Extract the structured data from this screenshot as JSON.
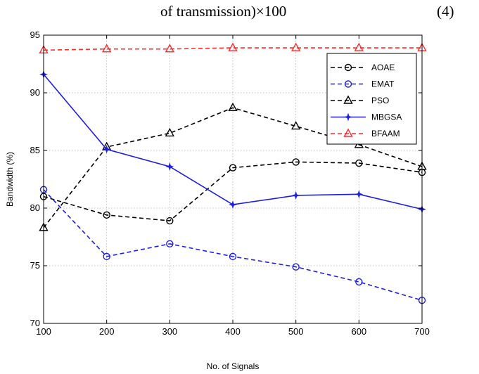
{
  "header": {
    "equation_text": "of transmission)×100",
    "equation_number": "(4)"
  },
  "colors": {
    "grid": "#b0b0b0",
    "black_series": "#000000",
    "blue_series": "#1f1fe0",
    "red_series": "#ff2a2a"
  },
  "chart_data": {
    "type": "line",
    "xlabel": "No. of Signals",
    "ylabel": "Bandwidth (%)",
    "xlim": [
      100,
      700
    ],
    "ylim": [
      70,
      95
    ],
    "xticks": [
      100,
      200,
      300,
      400,
      500,
      600,
      700
    ],
    "yticks": [
      70,
      75,
      80,
      85,
      90,
      95
    ],
    "grid": true,
    "legend_position": "top-right",
    "x": [
      100,
      200,
      300,
      400,
      500,
      600,
      700
    ],
    "series": [
      {
        "name": "AOAE",
        "values": [
          81.0,
          79.4,
          78.9,
          83.5,
          84.0,
          83.9,
          83.1
        ],
        "color": "#000000",
        "dash": "dashed",
        "marker": "circle"
      },
      {
        "name": "EMAT",
        "values": [
          81.6,
          75.8,
          76.9,
          75.8,
          74.9,
          73.6,
          72.0
        ],
        "color": "#1f1fe0",
        "dash": "dashed",
        "marker": "circle"
      },
      {
        "name": "PSO",
        "values": [
          78.3,
          85.3,
          86.5,
          88.7,
          87.1,
          85.5,
          83.6
        ],
        "color": "#000000",
        "dash": "dashed",
        "marker": "triangle"
      },
      {
        "name": "MBGSA",
        "values": [
          91.6,
          85.1,
          83.6,
          80.3,
          81.1,
          81.2,
          79.9
        ],
        "color": "#1f1fe0",
        "dash": "solid",
        "marker": "star"
      },
      {
        "name": "BFAAM",
        "values": [
          93.7,
          93.8,
          93.8,
          93.9,
          93.9,
          93.9,
          93.9
        ],
        "color": "#ff2a2a",
        "dash": "dashed",
        "marker": "triangle"
      }
    ]
  }
}
